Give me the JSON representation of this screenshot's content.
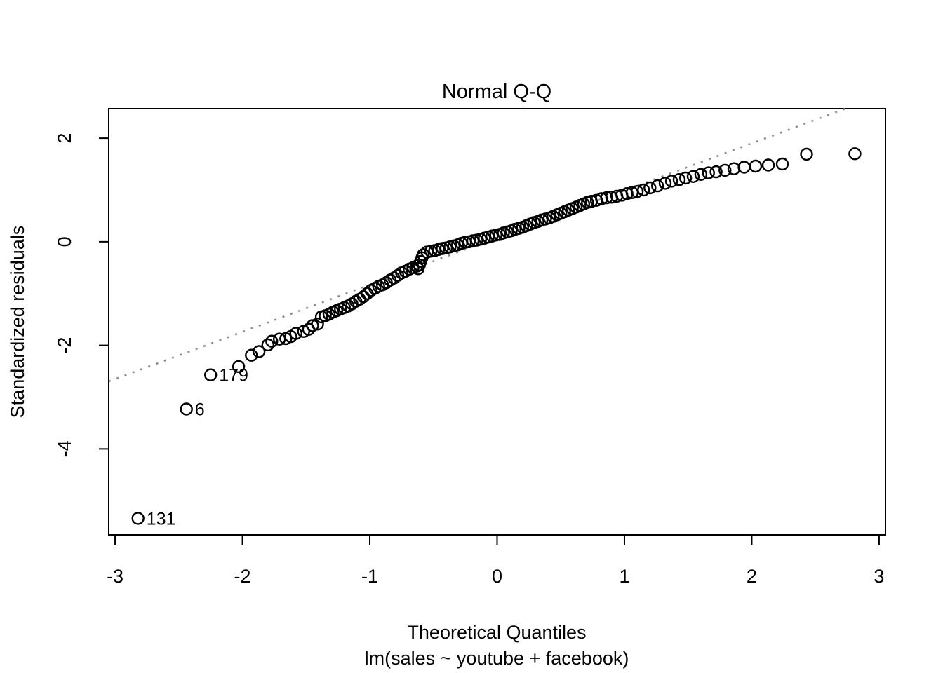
{
  "chart_data": {
    "type": "scatter",
    "title": "Normal Q-Q",
    "xlabel": "Theoretical Quantiles",
    "model_label": "lm(sales ~ youtube + facebook)",
    "ylabel": "Standardized residuals",
    "xlim": [
      -3.05,
      3.05
    ],
    "ylim": [
      -5.66,
      2.57
    ],
    "x_ticks": [
      -3,
      -2,
      -1,
      0,
      1,
      2,
      3
    ],
    "y_ticks": [
      -4,
      -2,
      0,
      2
    ],
    "grid": false,
    "legend_position": "none",
    "colors": {
      "points": "#000000",
      "reference_line": "#8c8c8c",
      "axis": "#000000",
      "background": "#ffffff"
    },
    "marker": {
      "shape": "open-circle",
      "radius_px": 8
    },
    "reference_line": {
      "style": "dotted",
      "slope": 0.91,
      "intercept": 0.08
    },
    "labeled_points": [
      {
        "label": "131",
        "x": -2.82,
        "y": -5.34
      },
      {
        "label": "6",
        "x": -2.44,
        "y": -3.23
      },
      {
        "label": "179",
        "x": -2.25,
        "y": -2.57
      }
    ],
    "points": [
      [
        -2.03,
        -2.41
      ],
      [
        -1.93,
        -2.19
      ],
      [
        -1.87,
        -2.12
      ],
      [
        -1.8,
        -1.99
      ],
      [
        -1.77,
        -1.92
      ],
      [
        -1.71,
        -1.88
      ],
      [
        -1.66,
        -1.87
      ],
      [
        -1.62,
        -1.83
      ],
      [
        -1.58,
        -1.77
      ],
      [
        -1.52,
        -1.73
      ],
      [
        -1.48,
        -1.69
      ],
      [
        -1.45,
        -1.62
      ],
      [
        -1.41,
        -1.59
      ],
      [
        -1.38,
        -1.45
      ],
      [
        -1.35,
        -1.43
      ],
      [
        -1.32,
        -1.4
      ],
      [
        -1.29,
        -1.36
      ],
      [
        -1.26,
        -1.33
      ],
      [
        -1.23,
        -1.3
      ],
      [
        -1.2,
        -1.27
      ],
      [
        -1.17,
        -1.24
      ],
      [
        -1.14,
        -1.2
      ],
      [
        -1.11,
        -1.15
      ],
      [
        -1.08,
        -1.11
      ],
      [
        -1.05,
        -1.06
      ],
      [
        -1.02,
        -1.0
      ],
      [
        -0.99,
        -0.94
      ],
      [
        -0.96,
        -0.9
      ],
      [
        -0.93,
        -0.86
      ],
      [
        -0.9,
        -0.83
      ],
      [
        -0.87,
        -0.79
      ],
      [
        -0.84,
        -0.74
      ],
      [
        -0.81,
        -0.7
      ],
      [
        -0.78,
        -0.65
      ],
      [
        -0.75,
        -0.6
      ],
      [
        -0.72,
        -0.57
      ],
      [
        -0.69,
        -0.53
      ],
      [
        -0.66,
        -0.5
      ],
      [
        -0.63,
        -0.47
      ],
      [
        -0.62,
        -0.52
      ],
      [
        -0.61,
        -0.45
      ],
      [
        -0.6,
        -0.38
      ],
      [
        -0.59,
        -0.31
      ],
      [
        -0.58,
        -0.25
      ],
      [
        -0.55,
        -0.2
      ],
      [
        -0.52,
        -0.18
      ],
      [
        -0.49,
        -0.17
      ],
      [
        -0.46,
        -0.15
      ],
      [
        -0.43,
        -0.13
      ],
      [
        -0.4,
        -0.12
      ],
      [
        -0.37,
        -0.1
      ],
      [
        -0.34,
        -0.08
      ],
      [
        -0.31,
        -0.06
      ],
      [
        -0.28,
        -0.03
      ],
      [
        -0.25,
        -0.01
      ],
      [
        -0.22,
        0.0
      ],
      [
        -0.19,
        0.02
      ],
      [
        -0.16,
        0.03
      ],
      [
        -0.13,
        0.05
      ],
      [
        -0.1,
        0.07
      ],
      [
        -0.07,
        0.09
      ],
      [
        -0.04,
        0.11
      ],
      [
        -0.01,
        0.13
      ],
      [
        0.02,
        0.14
      ],
      [
        0.05,
        0.17
      ],
      [
        0.08,
        0.19
      ],
      [
        0.11,
        0.21
      ],
      [
        0.14,
        0.24
      ],
      [
        0.17,
        0.26
      ],
      [
        0.2,
        0.28
      ],
      [
        0.23,
        0.31
      ],
      [
        0.26,
        0.34
      ],
      [
        0.29,
        0.37
      ],
      [
        0.32,
        0.39
      ],
      [
        0.35,
        0.42
      ],
      [
        0.38,
        0.44
      ],
      [
        0.41,
        0.46
      ],
      [
        0.44,
        0.49
      ],
      [
        0.47,
        0.52
      ],
      [
        0.5,
        0.55
      ],
      [
        0.53,
        0.58
      ],
      [
        0.56,
        0.61
      ],
      [
        0.59,
        0.64
      ],
      [
        0.62,
        0.67
      ],
      [
        0.65,
        0.7
      ],
      [
        0.68,
        0.73
      ],
      [
        0.71,
        0.76
      ],
      [
        0.74,
        0.78
      ],
      [
        0.78,
        0.8
      ],
      [
        0.82,
        0.83
      ],
      [
        0.86,
        0.85
      ],
      [
        0.9,
        0.86
      ],
      [
        0.94,
        0.88
      ],
      [
        0.98,
        0.9
      ],
      [
        1.02,
        0.93
      ],
      [
        1.06,
        0.95
      ],
      [
        1.1,
        0.97
      ],
      [
        1.15,
        1.0
      ],
      [
        1.2,
        1.04
      ],
      [
        1.26,
        1.08
      ],
      [
        1.32,
        1.13
      ],
      [
        1.37,
        1.17
      ],
      [
        1.43,
        1.2
      ],
      [
        1.48,
        1.23
      ],
      [
        1.54,
        1.26
      ],
      [
        1.6,
        1.3
      ],
      [
        1.66,
        1.33
      ],
      [
        1.72,
        1.35
      ],
      [
        1.79,
        1.38
      ],
      [
        1.86,
        1.41
      ],
      [
        1.94,
        1.44
      ],
      [
        2.03,
        1.46
      ],
      [
        2.13,
        1.48
      ],
      [
        2.24,
        1.5
      ],
      [
        2.43,
        1.69
      ],
      [
        2.81,
        1.7
      ]
    ]
  }
}
